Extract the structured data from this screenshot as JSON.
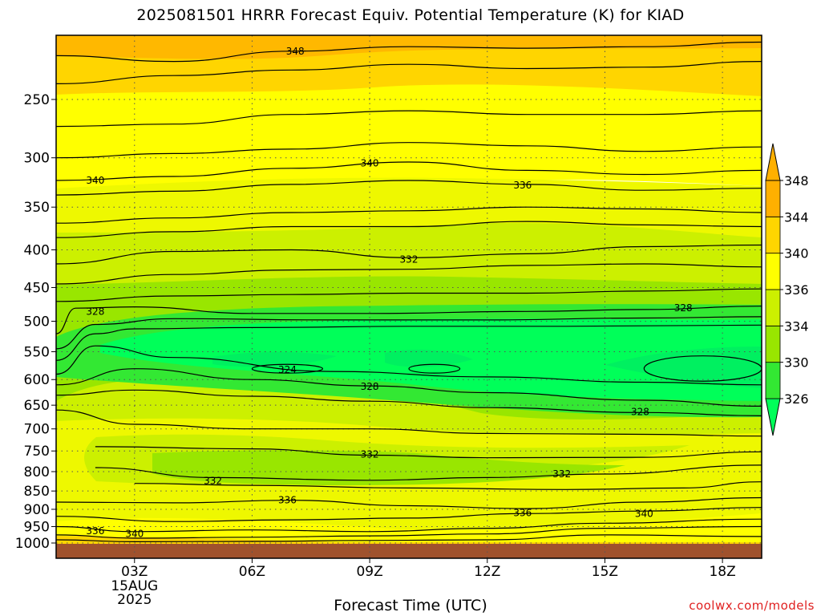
{
  "title": "2025081501 HRRR Forecast Equiv. Potential Temperature (K) for KIAD",
  "credit": "coolwx.com/models",
  "chart_data": {
    "type": "heatmap",
    "title": "2025081501 HRRR Forecast Equiv. Potential Temperature (K) for KIAD",
    "xlabel": "Forecast Time (UTC)",
    "ylabel": "",
    "x_hours": [
      1,
      19
    ],
    "x_ticks": [
      {
        "hour": 3,
        "label": "03Z"
      },
      {
        "hour": 6,
        "label": "06Z"
      },
      {
        "hour": 9,
        "label": "09Z"
      },
      {
        "hour": 12,
        "label": "12Z"
      },
      {
        "hour": 15,
        "label": "15Z"
      },
      {
        "hour": 18,
        "label": "18Z"
      }
    ],
    "date_label": [
      "15AUG",
      "2025"
    ],
    "y_scale": "log",
    "y_range_hpa": [
      1040,
      200
    ],
    "y_ticks": [
      250,
      300,
      350,
      400,
      450,
      500,
      550,
      600,
      650,
      700,
      750,
      800,
      850,
      900,
      950,
      1000
    ],
    "grid": true,
    "colorbar": {
      "levels": [
        326,
        330,
        334,
        336,
        340,
        344,
        348
      ],
      "labels": [
        "326",
        "330",
        "334",
        "336",
        "340",
        "344",
        "348"
      ],
      "colors": [
        "#00ff59",
        "#33e833",
        "#99e600",
        "#ccf000",
        "#ffff00",
        "#ffd500",
        "#ffb000"
      ],
      "extend": "both"
    },
    "contour_levels": [
      324,
      326,
      328,
      330,
      332,
      334,
      336,
      338,
      340,
      342,
      344,
      346,
      348
    ],
    "contour_labels": [
      {
        "text": "348",
        "hour": 7.1,
        "hpa": 215
      },
      {
        "text": "340",
        "hour": 9.0,
        "hpa": 305
      },
      {
        "text": "340",
        "hour": 2.0,
        "hpa": 322
      },
      {
        "text": "336",
        "hour": 12.9,
        "hpa": 327
      },
      {
        "text": "332",
        "hour": 10.0,
        "hpa": 412
      },
      {
        "text": "328",
        "hour": 2.0,
        "hpa": 485
      },
      {
        "text": "328",
        "hour": 17.0,
        "hpa": 480
      },
      {
        "text": "324",
        "hour": 6.9,
        "hpa": 582
      },
      {
        "text": "328",
        "hour": 9.0,
        "hpa": 613
      },
      {
        "text": "328",
        "hour": 15.9,
        "hpa": 664
      },
      {
        "text": "332",
        "hour": 9.0,
        "hpa": 758
      },
      {
        "text": "332",
        "hour": 5.0,
        "hpa": 823
      },
      {
        "text": "332",
        "hour": 13.9,
        "hpa": 806
      },
      {
        "text": "336",
        "hour": 6.9,
        "hpa": 875
      },
      {
        "text": "336",
        "hour": 12.9,
        "hpa": 910
      },
      {
        "text": "340",
        "hour": 16.0,
        "hpa": 912
      },
      {
        "text": "336",
        "hour": 2.0,
        "hpa": 963
      },
      {
        "text": "340",
        "hour": 3.0,
        "hpa": 972
      }
    ]
  }
}
